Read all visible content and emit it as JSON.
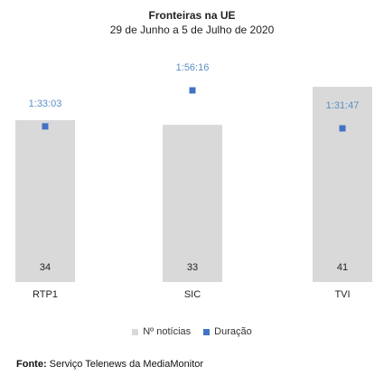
{
  "chart_data": {
    "type": "bar",
    "title": "Fronteiras na UE",
    "subtitle": "29 de Junho a 5 de Julho de 2020",
    "categories": [
      "RTP1",
      "SIC",
      "TVI"
    ],
    "series": [
      {
        "name": "Nº notícias",
        "type": "bar",
        "axis": "primary",
        "values": [
          34,
          33,
          41
        ],
        "color": "#d9d9d9"
      },
      {
        "name": "Duração",
        "type": "scatter",
        "axis": "secondary",
        "values": [
          "1:33:03",
          "1:56:16",
          "1:31:47"
        ],
        "color": "#4472c4",
        "label_color": "#5b8ec4"
      }
    ],
    "primary_axis_max": 41,
    "secondary_axis_max": "1:56:16",
    "grid": false,
    "legend_position": "bottom"
  },
  "source": {
    "label": "Fonte:",
    "text": " Serviço Telenews da MediaMonitor"
  }
}
